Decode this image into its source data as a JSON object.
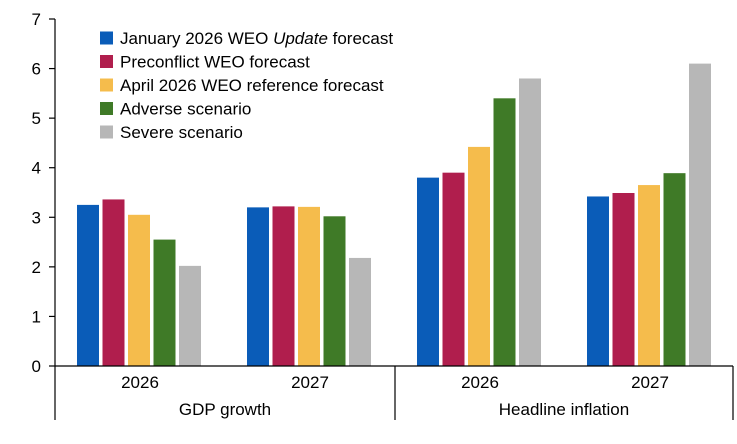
{
  "chart_data": {
    "type": "bar",
    "groups": [
      {
        "name": "GDP growth",
        "categories": [
          "2026",
          "2027"
        ]
      },
      {
        "name": "Headline inflation",
        "categories": [
          "2026",
          "2027"
        ]
      }
    ],
    "categories": [
      "2026",
      "2027",
      "2026",
      "2027"
    ],
    "series": [
      {
        "name": "January 2026 WEO Update forecast",
        "name_parts": [
          "January 2026 WEO ",
          "Update",
          " forecast"
        ],
        "color": "#0a5cb8",
        "values": [
          3.25,
          3.2,
          3.8,
          3.42
        ]
      },
      {
        "name": "Preconflict WEO forecast",
        "name_parts": [
          "Preconflict WEO forecast"
        ],
        "color": "#b01e4d",
        "values": [
          3.36,
          3.22,
          3.9,
          3.49
        ]
      },
      {
        "name": "April 2026 WEO reference forecast",
        "name_parts": [
          "April 2026 WEO reference forecast"
        ],
        "color": "#f5bc4c",
        "values": [
          3.05,
          3.21,
          4.42,
          3.65
        ]
      },
      {
        "name": "Adverse scenario",
        "name_parts": [
          "Adverse scenario"
        ],
        "color": "#3f7a27",
        "values": [
          2.55,
          3.02,
          5.4,
          3.89
        ]
      },
      {
        "name": "Severe scenario",
        "name_parts": [
          "Severe scenario"
        ],
        "color": "#b7b7b7",
        "values": [
          2.02,
          2.18,
          5.8,
          6.1
        ]
      }
    ],
    "ylim": [
      0,
      7
    ],
    "yticks": [
      "0",
      "1",
      "2",
      "3",
      "4",
      "5",
      "6",
      "7"
    ],
    "title": "",
    "xlabel": "",
    "ylabel": "",
    "legend_position": "top-left",
    "grid": false
  }
}
